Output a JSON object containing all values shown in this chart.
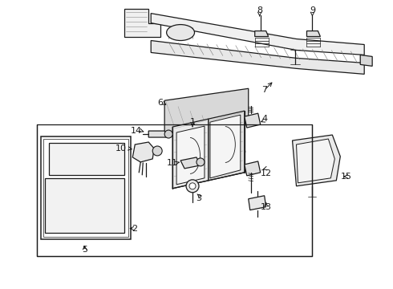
{
  "bg_color": "#ffffff",
  "line_color": "#1a1a1a",
  "lw": 0.9,
  "fig_w": 4.9,
  "fig_h": 3.6,
  "dpi": 100
}
